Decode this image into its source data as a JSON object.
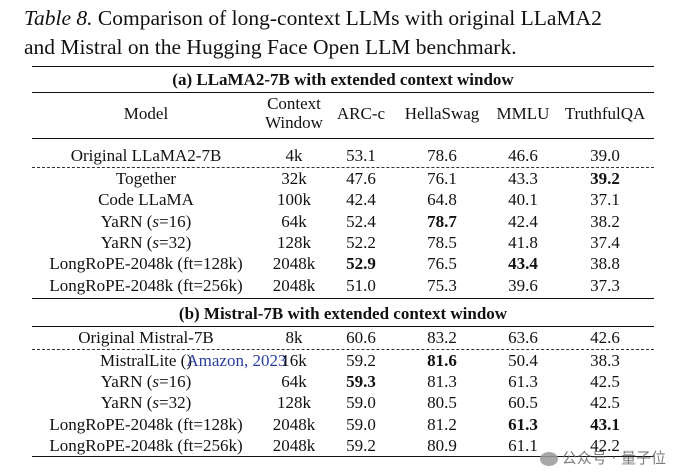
{
  "caption": {
    "label": "Table 8.",
    "text": "Comparison of long-context LLMs with original LLaMA2",
    "line2": "and Mistral on the Hugging Face Open LLM benchmark."
  },
  "columns": [
    "Model",
    "Context",
    "Window",
    "ARC-c",
    "HellaSwag",
    "MMLU",
    "TruthfulQA"
  ],
  "section_a": {
    "title": "(a) LLaMA2-7B with extended context window",
    "baseline": {
      "model": "Original LLaMA2-7B",
      "ctx": "4k",
      "arc": "53.1",
      "hella": "78.6",
      "mmlu": "46.6",
      "tqa": "39.0"
    },
    "rows": [
      {
        "model": "Together",
        "ctx": "32k",
        "arc": "47.6",
        "hella": "76.1",
        "mmlu": "43.3",
        "tqa": "39.2",
        "bold": [
          "tqa"
        ]
      },
      {
        "model": "Code LLaMA",
        "ctx": "100k",
        "arc": "42.4",
        "hella": "64.8",
        "mmlu": "40.1",
        "tqa": "37.1",
        "bold": []
      },
      {
        "model": "YaRN (s=16)",
        "ctx": "64k",
        "arc": "52.4",
        "hella": "78.7",
        "mmlu": "42.4",
        "tqa": "38.2",
        "bold": [
          "hella"
        ]
      },
      {
        "model": "YaRN (s=32)",
        "ctx": "128k",
        "arc": "52.2",
        "hella": "78.5",
        "mmlu": "41.8",
        "tqa": "37.4",
        "bold": []
      },
      {
        "model": "LongRoPE-2048k (ft=128k)",
        "ctx": "2048k",
        "arc": "52.9",
        "hella": "76.5",
        "mmlu": "43.4",
        "tqa": "38.8",
        "bold": [
          "arc",
          "mmlu"
        ]
      },
      {
        "model": "LongRoPE-2048k (ft=256k)",
        "ctx": "2048k",
        "arc": "51.0",
        "hella": "75.3",
        "mmlu": "39.6",
        "tqa": "37.3",
        "bold": []
      }
    ]
  },
  "section_b": {
    "title": "(b) Mistral-7B with extended context window",
    "baseline": {
      "model": "Original Mistral-7B",
      "ctx": "8k",
      "arc": "60.6",
      "hella": "83.2",
      "mmlu": "63.6",
      "tqa": "42.6"
    },
    "rows": [
      {
        "model_prefix": "MistralLite (",
        "model_cite": "Amazon, 2023",
        "model_suffix": ")",
        "ctx": "16k",
        "arc": "59.2",
        "hella": "81.6",
        "mmlu": "50.4",
        "tqa": "38.3",
        "bold": [
          "hella"
        ]
      },
      {
        "model": "YaRN (s=16)",
        "ctx": "64k",
        "arc": "59.3",
        "hella": "81.3",
        "mmlu": "61.3",
        "tqa": "42.5",
        "bold": [
          "arc"
        ]
      },
      {
        "model": "YaRN (s=32)",
        "ctx": "128k",
        "arc": "59.0",
        "hella": "80.5",
        "mmlu": "60.5",
        "tqa": "42.5",
        "bold": []
      },
      {
        "model": "LongRoPE-2048k (ft=128k)",
        "ctx": "2048k",
        "arc": "59.0",
        "hella": "81.2",
        "mmlu": "61.3",
        "tqa": "43.1",
        "bold": [
          "mmlu",
          "tqa"
        ]
      },
      {
        "model": "LongRoPE-2048k (ft=256k)",
        "ctx": "2048k",
        "arc": "59.2",
        "hella": "80.9",
        "mmlu": "61.1",
        "tqa": "42.2",
        "bold": []
      }
    ]
  },
  "watermark": "公众号 · 量子位"
}
